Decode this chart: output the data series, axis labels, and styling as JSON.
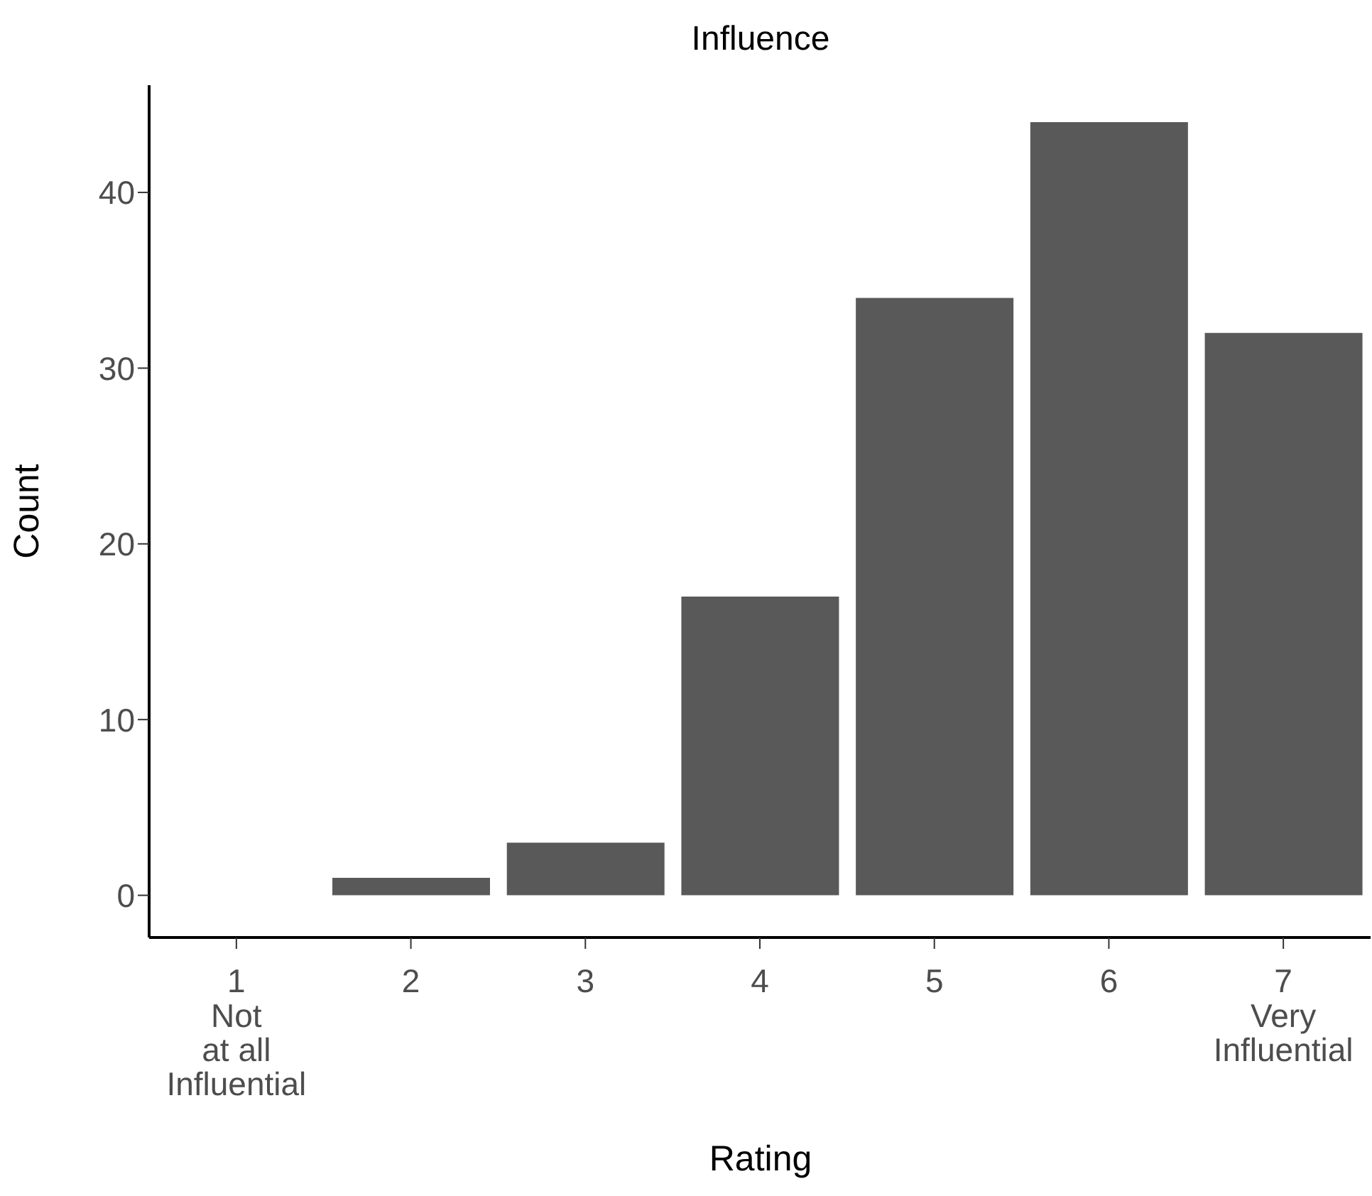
{
  "chart_data": {
    "type": "bar",
    "title": "Influence",
    "xlabel": "Rating",
    "ylabel": "Count",
    "categories": [
      "1\nNot\nat all\nInfluential",
      "2",
      "3",
      "4",
      "5",
      "6",
      "7\nVery\nInfluential"
    ],
    "values": [
      0,
      1,
      3,
      17,
      34,
      44,
      32
    ],
    "color": "#595959",
    "ylim": [
      -2.4,
      46.1
    ],
    "yticks": [
      0,
      10,
      20,
      30,
      40
    ],
    "grid": false,
    "legend": false
  }
}
